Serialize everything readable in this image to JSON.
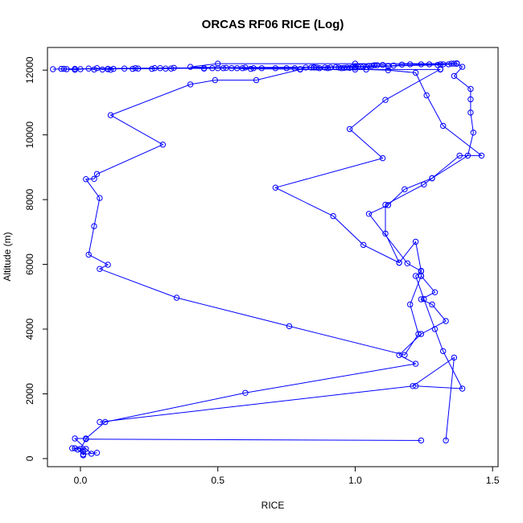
{
  "chart_data": {
    "type": "line",
    "title": "ORCAS RF06 RICE (Log)",
    "xlabel": "RICE",
    "ylabel": "Altitude (m)",
    "xlim": [
      -0.12,
      1.52
    ],
    "ylim": [
      -250,
      12700
    ],
    "xticks": [
      0.0,
      0.5,
      1.0,
      1.5
    ],
    "xtick_labels": [
      "0.0",
      "0.5",
      "1.0",
      "1.5"
    ],
    "yticks": [
      0,
      2000,
      4000,
      6000,
      8000,
      10000,
      12000
    ],
    "ytick_labels": [
      "0",
      "2000",
      "4000",
      "6000",
      "8000",
      "10000",
      "12000"
    ],
    "grid": false,
    "markers": "open-circle",
    "color": "#0000ff",
    "series": [
      {
        "points": [
          [
            0.06,
            180
          ],
          [
            0.01,
            130
          ],
          [
            -0.01,
            280
          ],
          [
            -0.02,
            320
          ],
          [
            -0.03,
            320
          ],
          [
            0.02,
            300
          ],
          [
            0.04,
            150
          ],
          [
            -0.02,
            620
          ],
          [
            0.02,
            620
          ],
          [
            0.09,
            1130
          ],
          [
            0.6,
            2030
          ],
          [
            1.22,
            2930
          ],
          [
            1.16,
            3200
          ],
          [
            1.24,
            3850
          ],
          [
            1.33,
            4250
          ],
          [
            1.28,
            4760
          ],
          [
            1.24,
            4920
          ],
          [
            1.29,
            5140
          ],
          [
            1.24,
            5640
          ],
          [
            1.24,
            5800
          ],
          [
            1.22,
            6700
          ],
          [
            1.16,
            6050
          ],
          [
            1.11,
            6950
          ],
          [
            1.11,
            7840
          ],
          [
            1.25,
            8470
          ],
          [
            1.28,
            8660
          ],
          [
            1.41,
            9360
          ],
          [
            1.43,
            10070
          ],
          [
            1.42,
            10690
          ],
          [
            1.42,
            11100
          ],
          [
            1.42,
            11420
          ],
          [
            1.36,
            11820
          ],
          [
            1.39,
            12100
          ],
          [
            1.37,
            12200
          ]
        ]
      },
      {
        "points": [
          [
            1.37,
            12200
          ],
          [
            1.3,
            12160
          ],
          [
            1.0,
            12100
          ],
          [
            0.6,
            12080
          ],
          [
            0.2,
            12060
          ],
          [
            -0.02,
            12040
          ],
          [
            -0.06,
            12040
          ],
          [
            0.1,
            12040
          ],
          [
            0.45,
            12060
          ],
          [
            0.85,
            12090
          ],
          [
            1.12,
            12120
          ],
          [
            1.32,
            12180
          ]
        ]
      },
      {
        "points": [
          [
            1.24,
            560
          ],
          [
            0.02,
            600
          ],
          [
            0.0,
            300
          ],
          [
            0.01,
            220
          ],
          [
            0.01,
            100
          ]
        ]
      },
      {
        "points": [
          [
            1.33,
            560
          ],
          [
            1.36,
            3120
          ],
          [
            1.21,
            2240
          ],
          [
            0.07,
            1130
          ]
        ]
      },
      {
        "points": [
          [
            1.22,
            2240
          ],
          [
            1.39,
            2160
          ],
          [
            1.32,
            3320
          ],
          [
            1.29,
            4000
          ],
          [
            1.25,
            4930
          ],
          [
            1.22,
            5640
          ],
          [
            1.24,
            5790
          ],
          [
            1.19,
            6030
          ],
          [
            1.05,
            7560
          ],
          [
            1.12,
            7830
          ],
          [
            1.18,
            8320
          ],
          [
            1.28,
            8660
          ],
          [
            1.38,
            9360
          ],
          [
            1.46,
            9360
          ],
          [
            1.32,
            10280
          ],
          [
            1.26,
            11220
          ],
          [
            1.22,
            11920
          ],
          [
            1.12,
            12000
          ],
          [
            1.04,
            12020
          ],
          [
            0.62,
            12040
          ],
          [
            0.4,
            12100
          ],
          [
            0.5,
            12200
          ],
          [
            1.0,
            12200
          ],
          [
            1.36,
            12200
          ]
        ]
      },
      {
        "points": [
          [
            1.24,
            5640
          ],
          [
            1.2,
            4760
          ],
          [
            1.23,
            3850
          ],
          [
            1.18,
            3200
          ],
          [
            0.76,
            4090
          ],
          [
            0.35,
            4970
          ],
          [
            0.07,
            5860
          ],
          [
            0.1,
            5990
          ],
          [
            0.03,
            6300
          ],
          [
            0.05,
            7180
          ],
          [
            0.07,
            8050
          ],
          [
            0.02,
            8630
          ],
          [
            0.05,
            8640
          ],
          [
            0.06,
            8790
          ],
          [
            0.3,
            9700
          ],
          [
            0.11,
            10610
          ],
          [
            0.4,
            11560
          ],
          [
            0.49,
            11690
          ],
          [
            0.64,
            11690
          ],
          [
            0.8,
            12020
          ],
          [
            1.0,
            12020
          ],
          [
            1.31,
            12020
          ]
        ]
      },
      {
        "points": [
          [
            1.31,
            12030
          ],
          [
            1.11,
            11080
          ],
          [
            0.98,
            10180
          ],
          [
            1.1,
            9280
          ],
          [
            0.71,
            8370
          ],
          [
            0.92,
            7490
          ],
          [
            1.03,
            6600
          ],
          [
            1.16,
            6050
          ]
        ]
      },
      {
        "points": [
          [
            -0.1,
            12030
          ],
          [
            -0.07,
            12040
          ],
          [
            -0.05,
            12030
          ],
          [
            -0.02,
            12010
          ],
          [
            0.0,
            12030
          ],
          [
            0.03,
            12050
          ],
          [
            0.05,
            12020
          ],
          [
            0.06,
            12060
          ],
          [
            0.08,
            12020
          ],
          [
            0.1,
            12030
          ],
          [
            0.11,
            12010
          ],
          [
            0.12,
            12040
          ],
          [
            0.16,
            12050
          ],
          [
            0.19,
            12040
          ],
          [
            0.21,
            12050
          ],
          [
            0.26,
            12040
          ],
          [
            0.27,
            12060
          ],
          [
            0.29,
            12060
          ],
          [
            0.31,
            12050
          ],
          [
            0.33,
            12050
          ],
          [
            0.34,
            12070
          ],
          [
            0.45,
            12050
          ],
          [
            0.48,
            12060
          ],
          [
            0.5,
            12060
          ],
          [
            0.52,
            12060
          ],
          [
            0.53,
            12070
          ],
          [
            0.55,
            12060
          ],
          [
            0.57,
            12060
          ],
          [
            0.59,
            12060
          ],
          [
            0.63,
            12060
          ],
          [
            0.66,
            12060
          ],
          [
            0.71,
            12060
          ],
          [
            0.75,
            12060
          ],
          [
            0.78,
            12060
          ],
          [
            0.8,
            12030
          ],
          [
            0.82,
            12080
          ],
          [
            0.84,
            12080
          ],
          [
            0.85,
            12080
          ],
          [
            0.86,
            12080
          ],
          [
            0.87,
            12060
          ],
          [
            0.89,
            12080
          ],
          [
            0.9,
            12060
          ],
          [
            0.91,
            12080
          ],
          [
            0.93,
            12090
          ],
          [
            0.94,
            12080
          ],
          [
            0.95,
            12060
          ],
          [
            0.96,
            12070
          ],
          [
            0.97,
            12080
          ],
          [
            0.98,
            12070
          ],
          [
            0.99,
            12090
          ],
          [
            1.0,
            12080
          ],
          [
            1.01,
            12110
          ],
          [
            1.02,
            12110
          ],
          [
            1.03,
            12110
          ],
          [
            1.04,
            12090
          ],
          [
            1.05,
            12130
          ],
          [
            1.06,
            12130
          ],
          [
            1.07,
            12150
          ],
          [
            1.08,
            12150
          ],
          [
            1.1,
            12160
          ],
          [
            1.12,
            12130
          ],
          [
            1.14,
            12140
          ],
          [
            1.17,
            12170
          ],
          [
            1.2,
            12180
          ],
          [
            1.24,
            12180
          ],
          [
            1.27,
            12180
          ],
          [
            1.31,
            12180
          ],
          [
            1.34,
            12180
          ],
          [
            1.35,
            12200
          ],
          [
            1.37,
            12210
          ]
        ]
      }
    ]
  }
}
